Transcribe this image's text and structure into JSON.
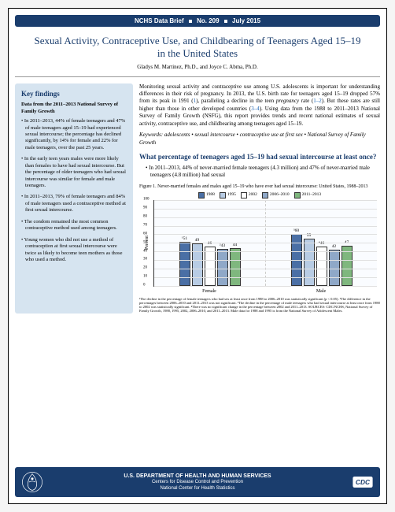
{
  "header": {
    "series": "NCHS Data Brief",
    "no_label": "No. 209",
    "date": "July 2015"
  },
  "title": "Sexual Activity, Contraceptive Use, and Childbearing of Teenagers Aged 15–19 in the United States",
  "authors": "Gladys M. Martinez, Ph.D., and Joyce C. Abma, Ph.D.",
  "sidebar": {
    "heading": "Key findings",
    "subhead": "Data from the 2011–2013 National Survey of Family Growth",
    "bullets": [
      "In 2011–2013, 44% of female teenagers and 47% of male teenagers aged 15–19 had experienced sexual intercourse; the percentage has declined significantly, by 14% for female and 22% for male teenagers, over the past 25 years.",
      "In the early teen years males were more likely than females to have had sexual intercourse. But the percentage of older teenagers who had sexual intercourse was similar for female and male teenagers.",
      "In 2011–2013, 79% of female teenagers and 84% of male teenagers used a contraceptive method at first sexual intercourse.",
      "The condom remained the most common contraceptive method used among teenagers.",
      "Young women who did not use a method of contraception at first sexual intercourse were twice as likely to become teen mothers as those who used a method."
    ]
  },
  "intro": {
    "p1a": "Monitoring sexual activity and contraceptive use among U.S. adolescents is important for understanding differences in their risk of pregnancy. In 2013, the U.S. birth rate for teenagers aged 15–19 dropped 57% from its peak in 1991 (",
    "l1": "1",
    "p1b": "), paralleling a decline in the teen ",
    "preg": "pregnancy",
    "p1c": " rate (",
    "l2": "1–2",
    "p1d": "). But these rates are still higher than those in other developed countries (",
    "l3": "3–4",
    "p1e": "). Using data from the 1988 to 2011–2013 National Survey of Family Growth (NSFG), this report provides trends and recent national estimates of sexual activity, contraceptive use, and childbearing among teenagers aged 15–19.",
    "keywords": "Keywords: adolescents • sexual intercourse • contraceptive use at first sex • National Survey of Family Growth"
  },
  "section_q": "What percentage of teenagers aged 15–19 had sexual intercourse at least once?",
  "section_bullet": "In 2011–2013, 44% of never-married female teenagers (4.3 million) and 47% of never-married male teenagers (4.8 million) had sexual",
  "figure": {
    "title": "Figure 1. Never-married females and males aged 15–19 who have ever had sexual intercourse: United States, 1988–2013",
    "ylabel": "Percent",
    "ymax": 100,
    "ystep": 10,
    "legend_labels": [
      "1988",
      "1995",
      "2002",
      "2006–2010",
      "2011–2013"
    ],
    "colors": [
      "#4a6fa5",
      "#b8cce4",
      "#ffffff",
      "#8fa8c8",
      "#7fb77e"
    ],
    "groups": [
      {
        "name": "Female",
        "values": [
          51,
          49,
          46,
          43,
          44
        ],
        "labels": [
          "¹51",
          "49",
          "46",
          "²43",
          "44"
        ]
      },
      {
        "name": "Male",
        "values": [
          60,
          55,
          46,
          42,
          47
        ],
        "labels": [
          "³60",
          "55",
          "⁴46",
          "42",
          "47"
        ]
      }
    ],
    "footnotes": "¹The decline in the percentage of female teenagers who had sex at least once from 1988 to 2006–2010 was statistically significant (p < 0.05). ²The difference in the percentages between 2006–2010 and 2011–2013 was not significant. ³The decline in the percentage of male teenagers who had sexual intercourse at least once from 1988 to 2002 was statistically significant. ⁴There was no significant change in the percentage between 2002 and 2011–2013. SOURCES: CDC/NCHS, National Survey of Family Growth, 1988, 1995, 2002, 2006–2010, and 2011–2013. Male data for 1988 and 1995 is from the National Survey of Adolescent Males."
  },
  "footer": {
    "dept": "U.S. DEPARTMENT OF HEALTH AND HUMAN SERVICES",
    "line2": "Centers for Disease Control and Prevention",
    "line3": "National Center for Health Statistics"
  }
}
